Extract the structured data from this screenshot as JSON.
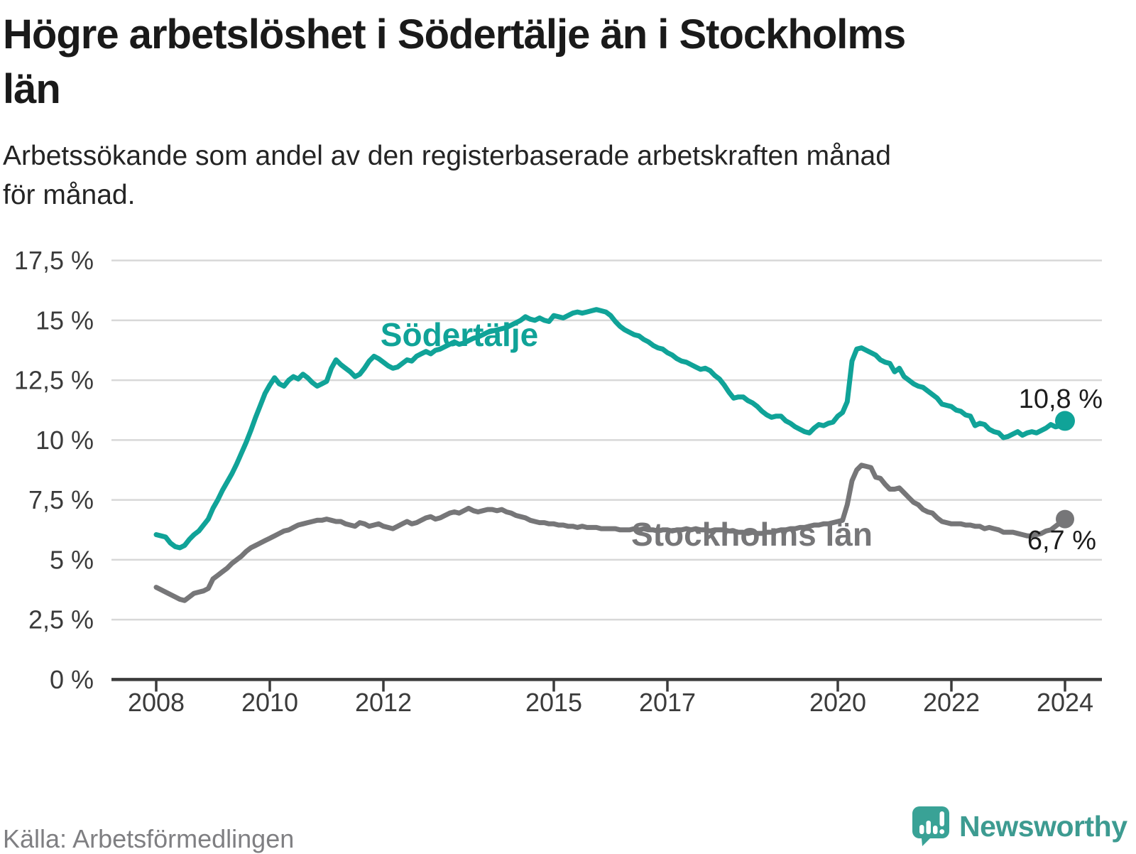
{
  "title": {
    "line1": "Högre arbetslöshet i Södertälje än i Stockholms",
    "line2": "län"
  },
  "subtitle": {
    "line1": "Arbetssökande som andel av den registerbaserade arbetskraften månad",
    "line2": "för månad."
  },
  "source": "Källa: Arbetsförmedlingen",
  "logo": {
    "name": "Newsworthy",
    "icon": "bar-chart-speech-bubble-icon",
    "color": "#3d9b91",
    "icon_color": "#39a296"
  },
  "colors": {
    "background": "#ffffff",
    "title_text": "#1a1a1a",
    "subtitle_text": "#242424",
    "gridline": "#d8d8d8",
    "axis": "#3b3b3b",
    "tick_label": "#3b3b3b",
    "end_label_text": "#1c1c1c",
    "source_text": "#7f7f82",
    "sodertalje": "#10a398",
    "stockholms_lan": "#767678"
  },
  "chart_data": {
    "type": "line",
    "title": "Högre arbetslöshet i Södertälje än i Stockholms län",
    "subtitle": "Arbetssökande som andel av den registerbaserade arbetskraften månad för månad.",
    "unit": "%",
    "frequency": "monthly",
    "x_start": "2008-01",
    "x_end": "2024-01",
    "ylim": [
      0,
      17.5
    ],
    "grid": "horizontal",
    "legend_position": "inline-labels",
    "y_ticks": [
      {
        "value": 0,
        "label": "0 %"
      },
      {
        "value": 2.5,
        "label": "2,5 %"
      },
      {
        "value": 5,
        "label": "5 %"
      },
      {
        "value": 7.5,
        "label": "7,5 %"
      },
      {
        "value": 10,
        "label": "10 %"
      },
      {
        "value": 12.5,
        "label": "12,5 %"
      },
      {
        "value": 15,
        "label": "15 %"
      },
      {
        "value": 17.5,
        "label": "17,5 %"
      }
    ],
    "x_ticks": [
      {
        "year": 2008,
        "label": "2008"
      },
      {
        "year": 2010,
        "label": "2010"
      },
      {
        "year": 2012,
        "label": "2012"
      },
      {
        "year": 2015,
        "label": "2015"
      },
      {
        "year": 2017,
        "label": "2017"
      },
      {
        "year": 2020,
        "label": "2020"
      },
      {
        "year": 2022,
        "label": "2022"
      },
      {
        "year": 2024,
        "label": "2024"
      }
    ],
    "series": [
      {
        "name": "Södertälje",
        "color": "#10a398",
        "end_value": 10.8,
        "end_label": "10,8 %",
        "values": [
          6.05,
          6.0,
          5.95,
          5.7,
          5.55,
          5.5,
          5.6,
          5.85,
          6.05,
          6.2,
          6.45,
          6.7,
          7.15,
          7.5,
          7.9,
          8.25,
          8.6,
          9.0,
          9.45,
          9.9,
          10.4,
          10.95,
          11.45,
          11.95,
          12.3,
          12.6,
          12.35,
          12.25,
          12.5,
          12.65,
          12.55,
          12.75,
          12.6,
          12.4,
          12.25,
          12.35,
          12.45,
          13.0,
          13.35,
          13.15,
          13.0,
          12.85,
          12.65,
          12.75,
          13.0,
          13.3,
          13.5,
          13.4,
          13.25,
          13.1,
          13.0,
          13.05,
          13.2,
          13.35,
          13.3,
          13.5,
          13.6,
          13.7,
          13.6,
          13.75,
          13.8,
          13.9,
          14.0,
          14.1,
          14.0,
          14.05,
          14.15,
          14.25,
          14.3,
          14.4,
          14.5,
          14.55,
          14.6,
          14.65,
          14.7,
          14.8,
          14.9,
          15.0,
          15.15,
          15.05,
          15.0,
          15.1,
          15.0,
          14.95,
          15.2,
          15.15,
          15.1,
          15.2,
          15.3,
          15.35,
          15.3,
          15.35,
          15.4,
          15.45,
          15.4,
          15.35,
          15.2,
          14.95,
          14.75,
          14.6,
          14.5,
          14.4,
          14.35,
          14.2,
          14.1,
          13.95,
          13.85,
          13.8,
          13.65,
          13.55,
          13.4,
          13.3,
          13.25,
          13.15,
          13.05,
          12.95,
          13.0,
          12.9,
          12.7,
          12.55,
          12.3,
          12.0,
          11.75,
          11.8,
          11.8,
          11.65,
          11.55,
          11.4,
          11.2,
          11.05,
          10.95,
          11.0,
          11.0,
          10.8,
          10.7,
          10.55,
          10.45,
          10.35,
          10.3,
          10.5,
          10.65,
          10.6,
          10.7,
          10.75,
          11.0,
          11.15,
          11.6,
          13.3,
          13.8,
          13.85,
          13.75,
          13.65,
          13.55,
          13.35,
          13.25,
          13.2,
          12.85,
          13.0,
          12.65,
          12.5,
          12.35,
          12.25,
          12.2,
          12.05,
          11.9,
          11.75,
          11.5,
          11.45,
          11.4,
          11.25,
          11.2,
          11.05,
          11.0,
          10.6,
          10.7,
          10.65,
          10.45,
          10.35,
          10.3,
          10.1,
          10.15,
          10.25,
          10.35,
          10.2,
          10.3,
          10.35,
          10.3,
          10.4,
          10.5,
          10.65,
          10.55,
          10.6,
          10.8
        ]
      },
      {
        "name": "Stockholms län",
        "color": "#767678",
        "end_value": 6.7,
        "end_label": "6,7 %",
        "values": [
          3.85,
          3.75,
          3.65,
          3.55,
          3.45,
          3.35,
          3.3,
          3.45,
          3.6,
          3.65,
          3.7,
          3.8,
          4.2,
          4.35,
          4.5,
          4.65,
          4.85,
          5.0,
          5.15,
          5.35,
          5.5,
          5.6,
          5.7,
          5.8,
          5.9,
          6.0,
          6.1,
          6.2,
          6.25,
          6.35,
          6.45,
          6.5,
          6.55,
          6.6,
          6.65,
          6.65,
          6.7,
          6.65,
          6.6,
          6.6,
          6.5,
          6.45,
          6.4,
          6.55,
          6.5,
          6.4,
          6.45,
          6.5,
          6.4,
          6.35,
          6.3,
          6.4,
          6.5,
          6.6,
          6.5,
          6.55,
          6.65,
          6.75,
          6.8,
          6.7,
          6.75,
          6.85,
          6.95,
          7.0,
          6.95,
          7.05,
          7.15,
          7.05,
          7.0,
          7.05,
          7.1,
          7.1,
          7.05,
          7.1,
          7.0,
          6.95,
          6.85,
          6.8,
          6.75,
          6.65,
          6.6,
          6.55,
          6.55,
          6.5,
          6.5,
          6.45,
          6.45,
          6.4,
          6.4,
          6.35,
          6.4,
          6.35,
          6.35,
          6.35,
          6.3,
          6.3,
          6.3,
          6.3,
          6.25,
          6.25,
          6.25,
          6.3,
          6.25,
          6.3,
          6.25,
          6.25,
          6.2,
          6.25,
          6.25,
          6.2,
          6.25,
          6.25,
          6.3,
          6.25,
          6.3,
          6.25,
          6.25,
          6.2,
          6.25,
          6.25,
          6.25,
          6.2,
          6.2,
          6.15,
          6.15,
          6.1,
          6.15,
          6.1,
          6.1,
          6.15,
          6.15,
          6.2,
          6.25,
          6.25,
          6.3,
          6.3,
          6.35,
          6.35,
          6.4,
          6.45,
          6.45,
          6.5,
          6.5,
          6.55,
          6.6,
          6.65,
          7.3,
          8.3,
          8.75,
          8.95,
          8.9,
          8.85,
          8.45,
          8.4,
          8.15,
          7.95,
          7.95,
          8.0,
          7.8,
          7.6,
          7.4,
          7.3,
          7.1,
          7.0,
          6.95,
          6.75,
          6.6,
          6.55,
          6.5,
          6.5,
          6.5,
          6.45,
          6.45,
          6.4,
          6.4,
          6.3,
          6.35,
          6.3,
          6.25,
          6.15,
          6.15,
          6.15,
          6.1,
          6.05,
          6.0,
          6.0,
          6.05,
          6.1,
          6.2,
          6.25,
          6.4,
          6.55,
          6.7
        ]
      }
    ]
  }
}
